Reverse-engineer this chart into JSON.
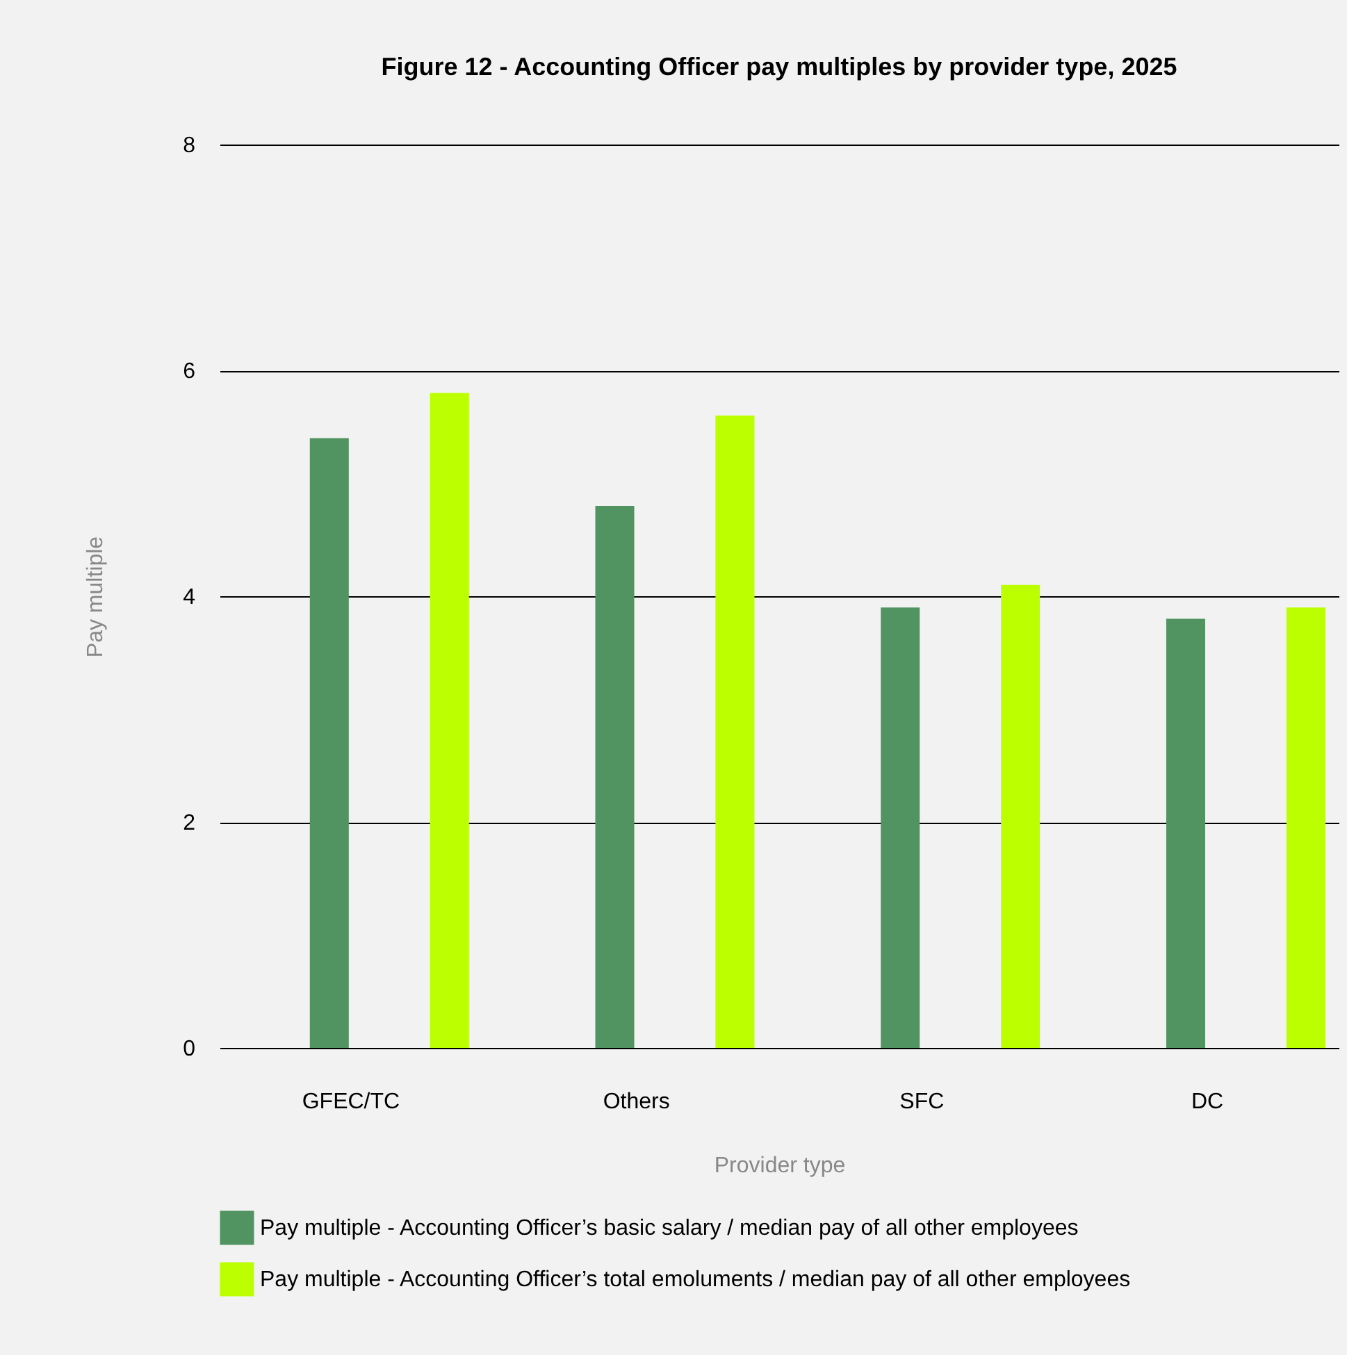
{
  "chart_data": {
    "type": "bar",
    "title": "Figure 12 - Accounting Officer pay multiples by provider type, 2025",
    "xlabel": "Provider type",
    "ylabel": "Pay multiple",
    "categories": [
      "GFEC/TC",
      "Others",
      "SFC",
      "DC"
    ],
    "series": [
      {
        "name": "Pay multiple - Accounting Officer’s basic salary / median pay of all other employees",
        "color": "#519461",
        "values": [
          5.4,
          4.8,
          3.9,
          3.8
        ]
      },
      {
        "name": "Pay multiple - Accounting Officer’s total emoluments / median pay of all other employees",
        "color": "#bbff00",
        "values": [
          5.8,
          5.6,
          4.1,
          3.9
        ]
      }
    ],
    "ylim": [
      0,
      8
    ],
    "yticks": [
      0,
      2,
      4,
      6,
      8
    ],
    "grid": "y",
    "legend": "bottom"
  }
}
